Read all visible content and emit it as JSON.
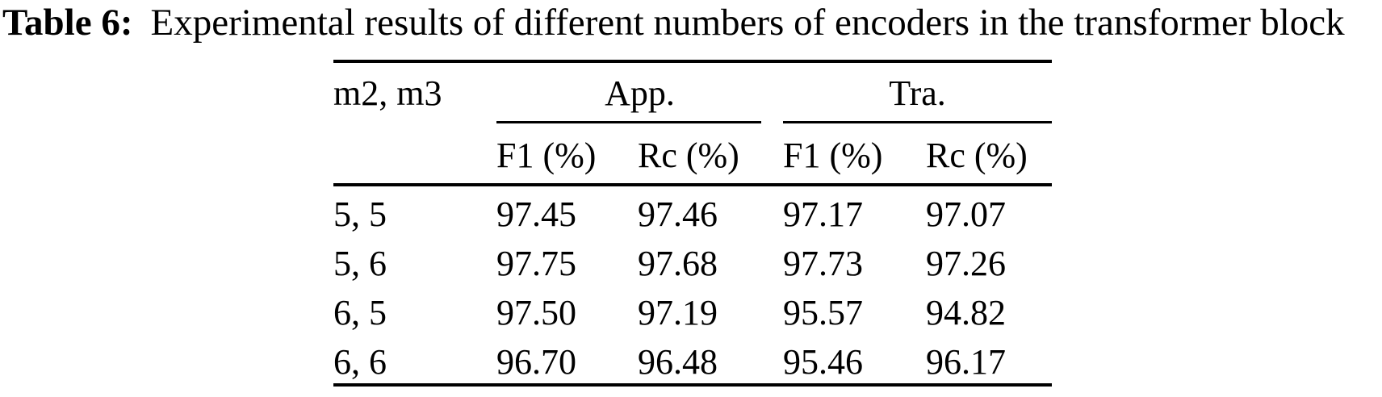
{
  "caption": {
    "label": "Table 6:",
    "text": "Experimental results of different numbers of encoders in the transformer block"
  },
  "table": {
    "corner_header": "m2, m3",
    "group_headers": [
      "App.",
      "Tra."
    ],
    "sub_headers": [
      "F1 (%)",
      "Rc (%)",
      "F1 (%)",
      "Rc (%)"
    ],
    "rows": [
      {
        "label": "5, 5",
        "values": [
          "97.45",
          "97.46",
          "97.17",
          "97.07"
        ]
      },
      {
        "label": "5, 6",
        "values": [
          "97.75",
          "97.68",
          "97.73",
          "97.26"
        ]
      },
      {
        "label": "6, 5",
        "values": [
          "97.50",
          "97.19",
          "95.57",
          "94.82"
        ]
      },
      {
        "label": "6, 6",
        "values": [
          "96.70",
          "96.48",
          "95.46",
          "96.17"
        ]
      }
    ]
  },
  "chart_data": {
    "type": "table",
    "title": "Table 6: Experimental results of different numbers of encoders in the transformer block",
    "columns": [
      "m2, m3",
      "App. F1 (%)",
      "App. Rc (%)",
      "Tra. F1 (%)",
      "Tra. Rc (%)"
    ],
    "rows": [
      [
        "5, 5",
        97.45,
        97.46,
        97.17,
        97.07
      ],
      [
        "5, 6",
        97.75,
        97.68,
        97.73,
        97.26
      ],
      [
        "6, 5",
        97.5,
        97.19,
        95.57,
        94.82
      ],
      [
        "6, 6",
        96.7,
        96.48,
        95.46,
        96.17
      ]
    ]
  },
  "colors": {
    "text": "#000000",
    "rule": "#000000",
    "background": "#ffffff"
  }
}
